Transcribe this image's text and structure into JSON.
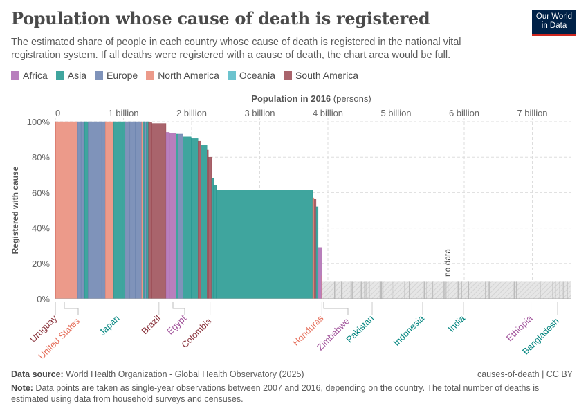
{
  "header": {
    "title": "Population whose cause of death is registered",
    "subtitle": "The estimated share of people in each country whose cause of death is registered in the national vital registration system. If all deaths were registered with a cause of death, the chart area would be full.",
    "logo": "Our World in Data"
  },
  "legend": [
    {
      "label": "Africa",
      "color": "#B87FBD"
    },
    {
      "label": "Asia",
      "color": "#3FA59E"
    },
    {
      "label": "Europe",
      "color": "#7F93BA"
    },
    {
      "label": "North America",
      "color": "#EC9A8A"
    },
    {
      "label": "Oceania",
      "color": "#6CC3CE"
    },
    {
      "label": "South America",
      "color": "#A9646C"
    }
  ],
  "label_colors": {
    "Africa": "#A2559C",
    "Asia": "#00847E",
    "Europe": "#4C6A9C",
    "North America": "#E56E5A",
    "Oceania": "#38AABA",
    "South America": "#883039"
  },
  "chart_data": {
    "type": "bar",
    "variant": "variable-width (marimekko)",
    "xlabel_bold": "Population in 2016",
    "xlabel_unit": " (persons)",
    "ylabel": "Registered with cause",
    "xlim": [
      0,
      7.55
    ],
    "ylim": [
      0,
      100
    ],
    "x_ticks": [
      {
        "v": 0,
        "label": "0"
      },
      {
        "v": 1,
        "label": "1 billion"
      },
      {
        "v": 2,
        "label": "2 billion"
      },
      {
        "v": 3,
        "label": "3 billion"
      },
      {
        "v": 4,
        "label": "4 billion"
      },
      {
        "v": 5,
        "label": "5 billion"
      },
      {
        "v": 6,
        "label": "6 billion"
      },
      {
        "v": 7,
        "label": "7 billion"
      }
    ],
    "y_ticks": [
      {
        "v": 0,
        "label": "0%"
      },
      {
        "v": 20,
        "label": "20%"
      },
      {
        "v": 40,
        "label": "40%"
      },
      {
        "v": 60,
        "label": "60%"
      },
      {
        "v": 80,
        "label": "80%"
      },
      {
        "v": 100,
        "label": "100%"
      }
    ],
    "grid": true,
    "bars": [
      {
        "name": "Uruguay",
        "region": "South America",
        "pop_m": 3.4,
        "share": 100
      },
      {
        "name": "United States",
        "region": "North America",
        "pop_m": 323,
        "share": 100
      },
      {
        "region": "Europe",
        "pop_m": 51,
        "share": 100
      },
      {
        "region": "Europe",
        "pop_m": 41,
        "share": 100
      },
      {
        "region": "Europe",
        "pop_m": 10,
        "share": 100
      },
      {
        "region": "Asia",
        "pop_m": 51,
        "share": 100
      },
      {
        "region": "Europe",
        "pop_m": 173,
        "share": 100
      },
      {
        "region": "Europe",
        "pop_m": 30,
        "share": 100
      },
      {
        "region": "Europe",
        "pop_m": 51,
        "share": 100
      },
      {
        "region": "North America",
        "pop_m": 122,
        "share": 100
      },
      {
        "name": "Japan",
        "region": "Asia",
        "pop_m": 127,
        "share": 100
      },
      {
        "region": "Asia",
        "pop_m": 41,
        "share": 100
      },
      {
        "region": "Europe",
        "pop_m": 71,
        "share": 100
      },
      {
        "region": "Europe",
        "pop_m": 81,
        "share": 100
      },
      {
        "region": "Europe",
        "pop_m": 91,
        "share": 100
      },
      {
        "region": "North America",
        "pop_m": 20,
        "share": 100
      },
      {
        "region": "Asia",
        "pop_m": 20,
        "share": 100
      },
      {
        "region": "Europe",
        "pop_m": 30,
        "share": 100
      },
      {
        "region": "Asia",
        "pop_m": 30,
        "share": 100
      },
      {
        "region": "South America",
        "pop_m": 51,
        "share": 99.5
      },
      {
        "name": "Brazil",
        "region": "South America",
        "pop_m": 207,
        "share": 99
      },
      {
        "region": "Africa",
        "pop_m": 51,
        "share": 94
      },
      {
        "name": "Egypt",
        "region": "Africa",
        "pop_m": 95,
        "share": 93.5
      },
      {
        "region": "Asia",
        "pop_m": 30,
        "share": 93
      },
      {
        "region": "Europe",
        "pop_m": 71,
        "share": 93
      },
      {
        "region": "Asia",
        "pop_m": 122,
        "share": 91.5
      },
      {
        "region": "Asia",
        "pop_m": 101,
        "share": 90.5
      },
      {
        "region": "South America",
        "pop_m": 41,
        "share": 89
      },
      {
        "region": "Asia",
        "pop_m": 91,
        "share": 87
      },
      {
        "region": "South America",
        "pop_m": 20,
        "share": 84
      },
      {
        "name": "Colombia",
        "region": "South America",
        "pop_m": 48,
        "share": 80
      },
      {
        "region": "Asia",
        "pop_m": 30,
        "share": 68
      },
      {
        "region": "Asia",
        "pop_m": 41,
        "share": 64
      },
      {
        "region": "Asia",
        "pop_m": 1411,
        "share": 61.5
      },
      {
        "region": "North America",
        "pop_m": 20,
        "share": 57
      },
      {
        "region": "South America",
        "pop_m": 30,
        "share": 56.5
      },
      {
        "region": "Asia",
        "pop_m": 30,
        "share": 52
      },
      {
        "region": "Africa",
        "pop_m": 51,
        "share": 29
      },
      {
        "name": "Honduras",
        "region": "North America",
        "pop_m": 9,
        "share": 13
      }
    ],
    "no_data": {
      "label": "no data",
      "countries": [
        {
          "name": "Zimbabwe",
          "region": "Africa",
          "at_billion": 3.93
        },
        {
          "name": "Pakistan",
          "region": "Asia",
          "at_billion": 4.65
        },
        {
          "name": "Indonesia",
          "region": "Asia",
          "at_billion": 5.39
        },
        {
          "name": "India",
          "region": "Asia",
          "at_billion": 5.99
        },
        {
          "name": "Ethiopia",
          "region": "Africa",
          "at_billion": 6.98
        },
        {
          "name": "Bangladesh",
          "region": "Asia",
          "at_billion": 7.37
        }
      ]
    }
  },
  "footer": {
    "source_label": "Data source:",
    "source": " World Health Organization - Global Health Observatory (2025)",
    "license": "causes-of-death | CC BY",
    "note_label": "Note:",
    "note": " Data points are taken as single-year observations between 2007 and 2016, depending on the country. The total number of deaths is estimated using data from household surveys and censuses."
  }
}
